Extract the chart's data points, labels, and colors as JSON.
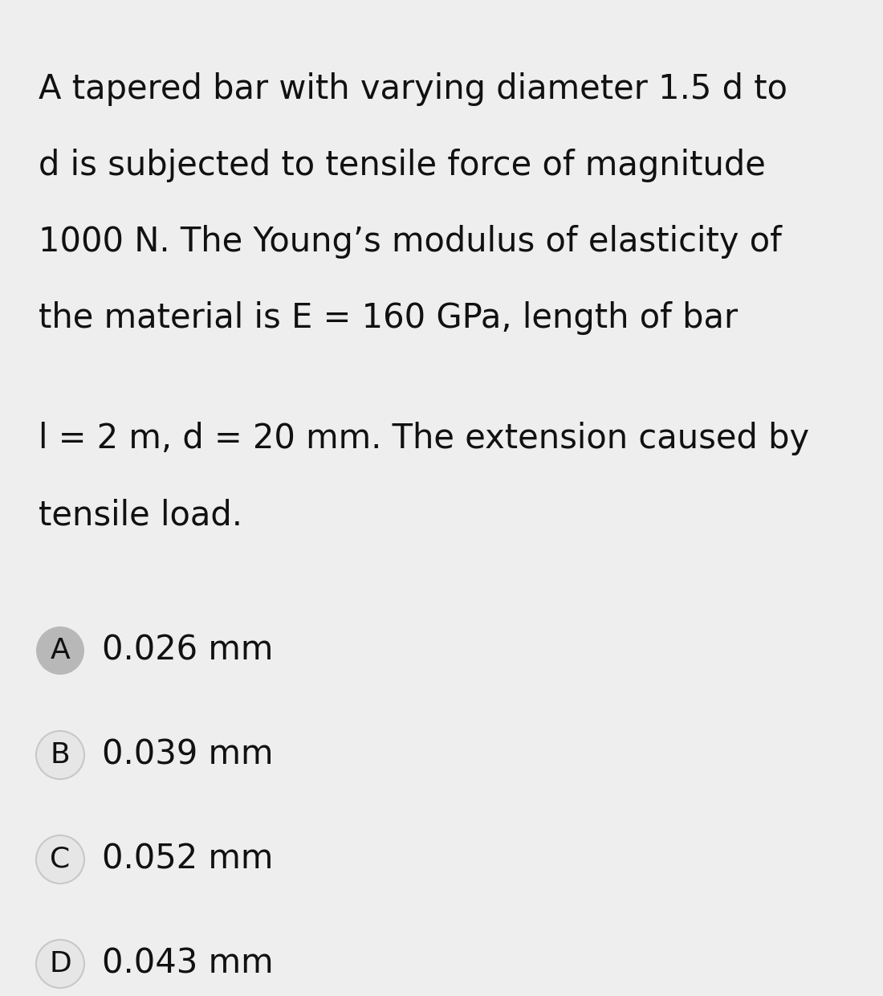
{
  "background_color": "#eeeeee",
  "text_color": "#111111",
  "question_text_lines": [
    "A tapered bar with varying diameter 1.5 d to",
    "d is subjected to tensile force of magnitude",
    "1000 N. The Young’s modulus of elasticity of",
    "the material is E = 160 GPa, length of bar"
  ],
  "question_text_lines2": [
    "l = 2 m, d = 20 mm. The extension caused by",
    "tensile load."
  ],
  "options": [
    {
      "label": "A",
      "text": "0.026 mm",
      "selected": true
    },
    {
      "label": "B",
      "text": "0.039 mm",
      "selected": false
    },
    {
      "label": "C",
      "text": "0.052 mm",
      "selected": false
    },
    {
      "label": "D",
      "text": "0.043 mm",
      "selected": false
    }
  ],
  "selected_circle_color": "#b8b8b8",
  "unselected_circle_color": "#e6e6e6",
  "selected_edge_color": "#b8b8b8",
  "unselected_edge_color": "#c8c8c8",
  "font_size_question": 30,
  "font_size_option": 30,
  "font_size_label": 26
}
